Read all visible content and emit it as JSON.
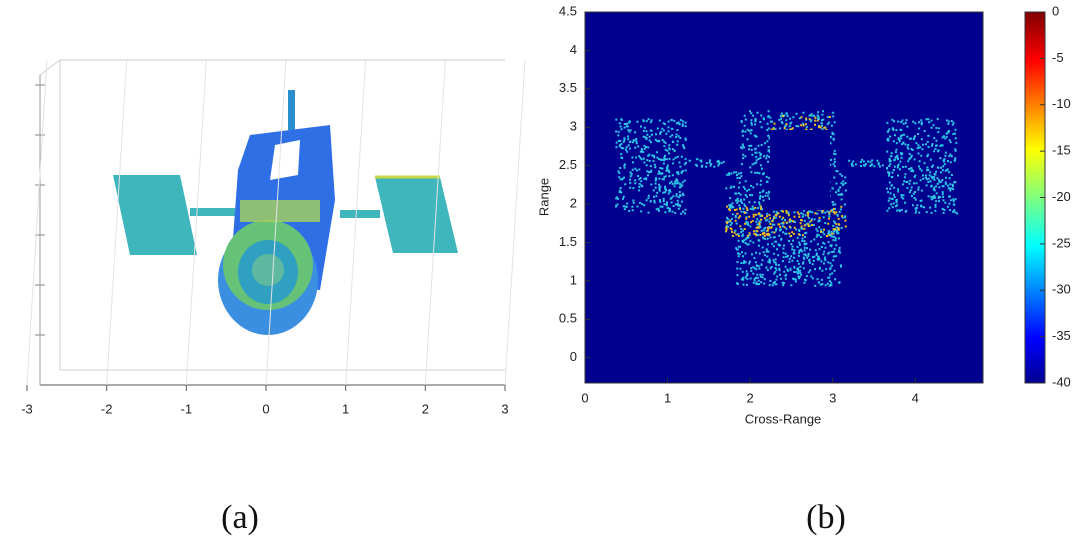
{
  "chart_data": [
    {
      "type": "3d-model",
      "caption": "(a)",
      "xlim": [
        -3,
        3
      ],
      "xticks": [
        -3,
        -2,
        -1,
        0,
        1,
        2,
        3
      ]
    },
    {
      "type": "heatmap",
      "caption": "(b)",
      "xlabel": "Cross-Range",
      "ylabel": "Range",
      "xlim": [
        0,
        4.82
      ],
      "ylim": [
        -0.33,
        4.5
      ],
      "xticks": [
        0,
        1,
        2,
        3,
        4
      ],
      "yticks": [
        0,
        0.5,
        1,
        1.5,
        2,
        2.5,
        3,
        3.5,
        4,
        4.5
      ],
      "colorbar": {
        "lim": [
          -40,
          0
        ],
        "ticks": [
          0,
          -5,
          -10,
          -15,
          -20,
          -25,
          -30,
          -35,
          -40
        ]
      }
    }
  ]
}
